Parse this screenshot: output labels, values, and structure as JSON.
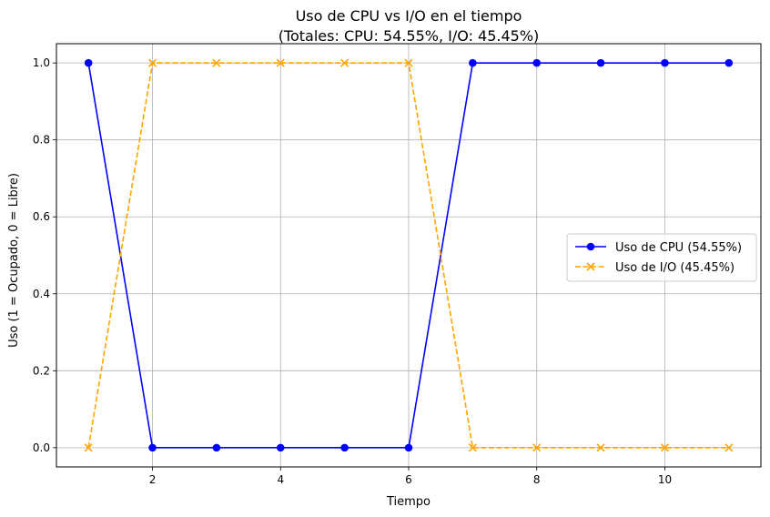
{
  "chart_data": {
    "type": "line",
    "title_line1": "Uso de CPU vs I/O en el tiempo",
    "title_line2": "(Totales: CPU: 54.55%, I/O: 45.45%)",
    "xlabel": "Tiempo",
    "ylabel": "Uso (1 = Ocupado, 0 = Libre)",
    "x": [
      1,
      2,
      3,
      4,
      5,
      6,
      7,
      8,
      9,
      10,
      11
    ],
    "xlim": [
      0.5,
      11.5
    ],
    "ylim": [
      -0.05,
      1.05
    ],
    "xticks": [
      2,
      4,
      6,
      8,
      10
    ],
    "xtick_labels": [
      "2",
      "4",
      "6",
      "8",
      "10"
    ],
    "yticks": [
      0.0,
      0.2,
      0.4,
      0.6,
      0.8,
      1.0
    ],
    "ytick_labels": [
      "0.0",
      "0.2",
      "0.4",
      "0.6",
      "0.8",
      "1.0"
    ],
    "grid": true,
    "legend_position": "center-right",
    "series": [
      {
        "name": "Uso de CPU (54.55%)",
        "values": [
          1,
          0,
          0,
          0,
          0,
          0,
          1,
          1,
          1,
          1,
          1
        ],
        "color": "#0000ff",
        "linestyle": "solid",
        "marker": "circle"
      },
      {
        "name": "Uso de I/O (45.45%)",
        "values": [
          0,
          1,
          1,
          1,
          1,
          1,
          0,
          0,
          0,
          0,
          0
        ],
        "color": "#ffa500",
        "linestyle": "dashed",
        "marker": "x"
      }
    ]
  }
}
